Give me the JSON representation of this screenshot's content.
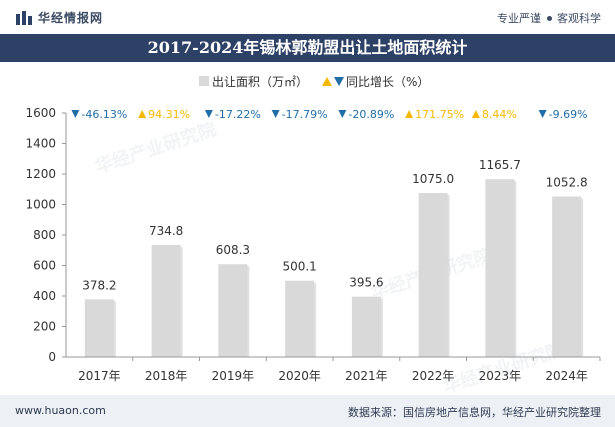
{
  "header": {
    "site_name": "华经情报网",
    "tagline_left": "专业严谨",
    "tagline_right": "客观科学"
  },
  "footer": {
    "left": "www.huaon.com",
    "right": "数据来源：国信房地产信息网，华经产业研究院整理"
  },
  "watermark": "华经产业研究院",
  "colors": {
    "bar": "#d9d9d9",
    "down": "#1f6ea8",
    "up": "#f5b800",
    "title_bg": "#2d4066",
    "footer_bg": "#edf0f5"
  },
  "chart_data": {
    "type": "bar",
    "title": "2017-2024年锡林郭勒盟出让土地面积统计",
    "legend": {
      "bar_label": "出让面积（万㎡）",
      "growth_label": "同比增长（%）",
      "placement": "top-center"
    },
    "categories": [
      "2017年",
      "2018年",
      "2019年",
      "2020年",
      "2021年",
      "2022年",
      "2023年",
      "2024年"
    ],
    "series": [
      {
        "name": "出让面积（万㎡）",
        "values": [
          378.2,
          734.8,
          608.3,
          500.1,
          395.6,
          1075.0,
          1165.7,
          1052.8
        ],
        "labels": [
          "378.2",
          "734.8",
          "608.3",
          "500.1",
          "395.6",
          "1075.0",
          "1165.7",
          "1052.8"
        ]
      },
      {
        "name": "同比增长（%）",
        "values": [
          -46.13,
          94.31,
          -17.22,
          -17.79,
          -20.89,
          171.75,
          8.44,
          -9.69
        ],
        "labels": [
          "-46.13%",
          "94.31%",
          "-17.22%",
          "-17.79%",
          "-20.89%",
          "171.75%",
          "8.44%",
          "-9.69%"
        ]
      }
    ],
    "yticks": [
      "0",
      "200",
      "400",
      "600",
      "800",
      "1000",
      "1200",
      "1400",
      "1600"
    ],
    "ylim": [
      0,
      1600
    ],
    "grid": false
  }
}
